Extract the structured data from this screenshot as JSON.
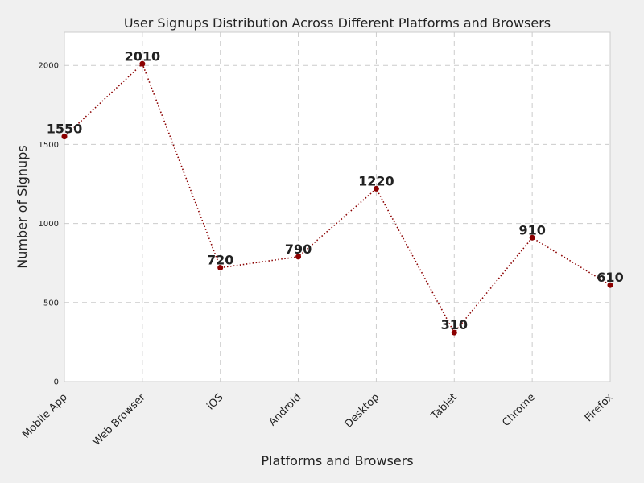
{
  "chart_data": {
    "type": "line",
    "title": "User Signups Distribution Across Different Platforms and Browsers",
    "xlabel": "Platforms and Browsers",
    "ylabel": "Number of Signups",
    "categories": [
      "Mobile App",
      "Web Browser",
      "iOS",
      "Android",
      "Desktop",
      "Tablet",
      "Chrome",
      "Firefox"
    ],
    "values": [
      1550,
      2010,
      720,
      790,
      1220,
      310,
      910,
      610
    ],
    "ylim": [
      0,
      2210
    ],
    "yticks": [
      0,
      500,
      1000,
      1500,
      2000
    ],
    "grid": true,
    "line_style": "dotted",
    "colors": {
      "line": "#8b0000",
      "marker": "#8b0000",
      "grid": "#cccccc",
      "plot_bg": "#ffffff"
    }
  }
}
